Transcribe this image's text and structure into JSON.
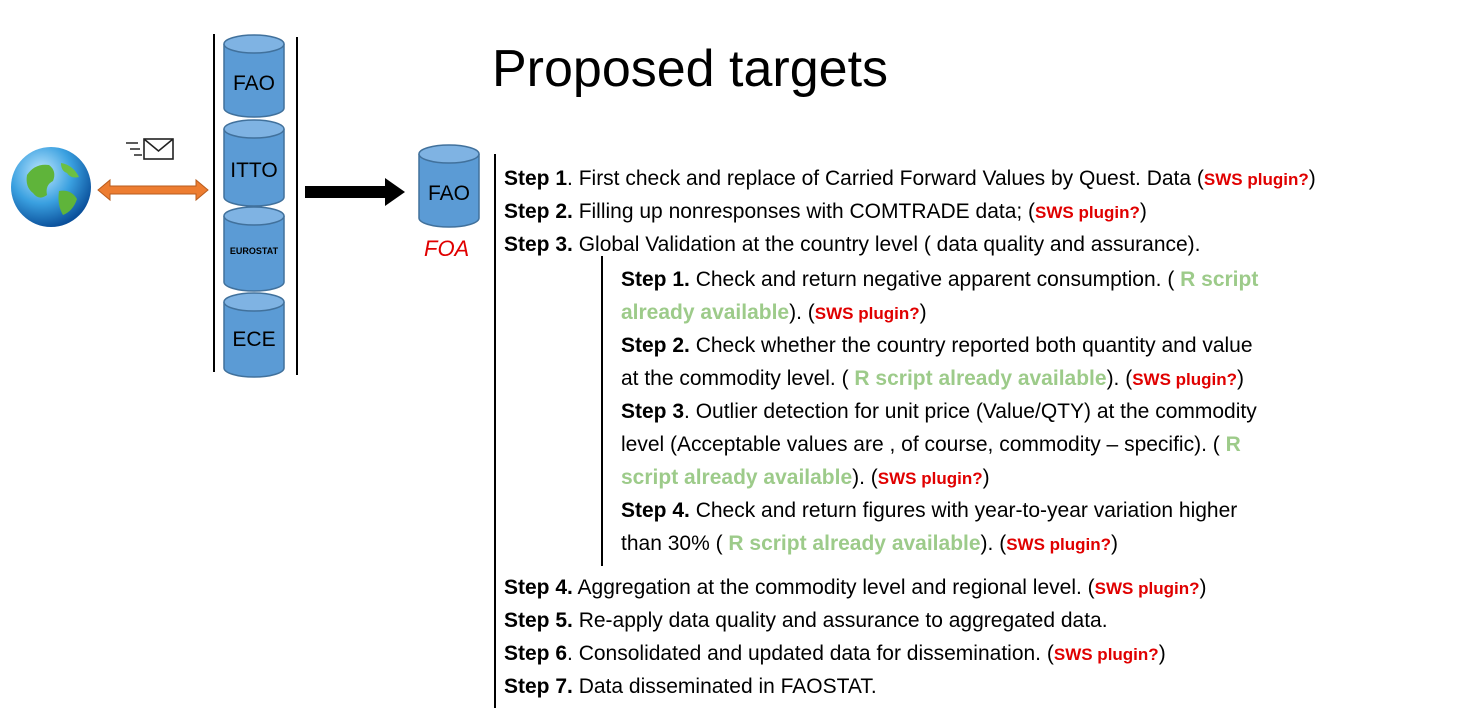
{
  "title": "Proposed targets",
  "sources": {
    "cyl1": "FAO",
    "cyl2": "ITTO",
    "cyl3": "EUROSTAT",
    "cyl4": "ECE"
  },
  "target": {
    "cyl": "FAO",
    "caption": "FOA"
  },
  "tags": {
    "sws": "SWS plugin?",
    "open": "(",
    "close": ")"
  },
  "steps": {
    "s1": {
      "label": "Step 1",
      "text": ". First check and replace of Carried Forward Values by Quest. Data ("
    },
    "s2": {
      "label": "Step 2.",
      "text": " Filling up nonresponses with COMTRADE data; ("
    },
    "s3": {
      "label": "Step 3.",
      "text": " Global Validation at the country level ( data quality and assurance)."
    },
    "s4": {
      "label": "Step 4.",
      "text": " Aggregation at the commodity level and regional level. ("
    },
    "s5": {
      "label": "Step 5.",
      "text": " Re-apply data quality and assurance to aggregated data."
    },
    "s6": {
      "label": "Step 6",
      "text": ". Consolidated and updated data for dissemination. ("
    },
    "s7": {
      "label": "Step 7.",
      "text": " Data disseminated in FAOSTAT."
    }
  },
  "substeps": {
    "a": {
      "label": "Step 1.",
      "text1": " Check and return negative apparent consumption. ( ",
      "rs1": "R script",
      "rs2": "already available",
      "text2": "). ("
    },
    "b": {
      "label": "Step 2.",
      "text1": " Check whether the country reported both quantity and value",
      "line2": "at the commodity level. ( ",
      "rs": "R script already available",
      "text2": "). ("
    },
    "c": {
      "label": "Step 3",
      "text1": ". Outlier detection for unit price (Value/QTY) at the commodity",
      "line2": "level (Acceptable values are , of course, commodity – specific). ( ",
      "rs1": "R",
      "rs2": "script already available",
      "text2": "). ("
    },
    "d": {
      "label": "Step 4.",
      "text1": " Check and return figures with  year-to-year variation higher",
      "line2": "than 30%  ( ",
      "rs": "R script already available",
      "text2": "). ("
    }
  },
  "colors": {
    "cylinder_fill": "#5b9bd5",
    "cylinder_stroke": "#41719c",
    "arrow": "#ed7d31",
    "red": "#e00000",
    "green": "#9dcb8a"
  }
}
